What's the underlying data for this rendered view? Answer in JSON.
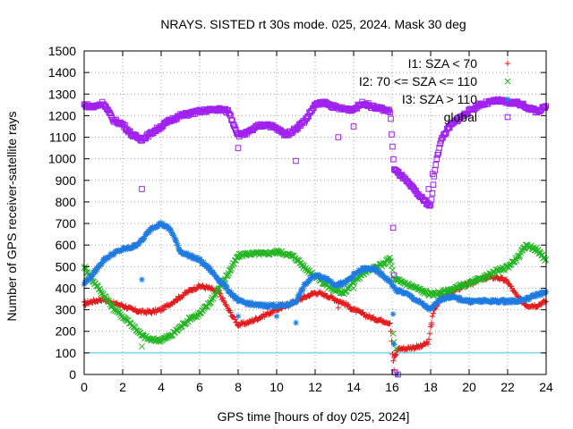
{
  "chart_data": {
    "type": "scatter",
    "title": "NRAYS. SISTED rt 30s mode. 025, 2024. Mask 30 deg",
    "xlabel": "GPS time [hours of doy 025, 2024]",
    "ylabel": "Number of GPS receiver-satellite rays",
    "xlim": [
      0,
      24
    ],
    "ylim": [
      0,
      1500
    ],
    "xticks": [
      0,
      2,
      4,
      6,
      8,
      10,
      12,
      14,
      16,
      18,
      20,
      22,
      24
    ],
    "yticks": [
      0,
      100,
      200,
      300,
      400,
      500,
      600,
      700,
      800,
      900,
      1000,
      1100,
      1200,
      1300,
      1400,
      1500
    ],
    "grid": true,
    "legend_position": "top-right",
    "reference_line": {
      "y": 100,
      "color": "#40c8e8"
    },
    "series": [
      {
        "name": "I1: SZA < 70",
        "marker": "+",
        "color": "#e41a1c",
        "points": [
          [
            0,
            330
          ],
          [
            0.5,
            340
          ],
          [
            1,
            350
          ],
          [
            1.5,
            330
          ],
          [
            2,
            320
          ],
          [
            2.5,
            300
          ],
          [
            3,
            290
          ],
          [
            3.5,
            290
          ],
          [
            4,
            300
          ],
          [
            4.5,
            330
          ],
          [
            5,
            360
          ],
          [
            5.5,
            390
          ],
          [
            6,
            410
          ],
          [
            6.5,
            400
          ],
          [
            7,
            380
          ],
          [
            7.5,
            300
          ],
          [
            8,
            230
          ],
          [
            8.5,
            240
          ],
          [
            9,
            260
          ],
          [
            9.5,
            280
          ],
          [
            10,
            300
          ],
          [
            10.5,
            320
          ],
          [
            11,
            340
          ],
          [
            11.5,
            360
          ],
          [
            12,
            380
          ],
          [
            12.5,
            370
          ],
          [
            13,
            350
          ],
          [
            13.5,
            330
          ],
          [
            14,
            300
          ],
          [
            14.5,
            280
          ],
          [
            15,
            260
          ],
          [
            15.5,
            250
          ],
          [
            15.9,
            240
          ],
          [
            16.05,
            60
          ],
          [
            16.3,
            120
          ],
          [
            16.7,
            120
          ],
          [
            17,
            125
          ],
          [
            17.5,
            130
          ],
          [
            17.9,
            150
          ],
          [
            18.1,
            280
          ],
          [
            18.5,
            350
          ],
          [
            19,
            380
          ],
          [
            19.5,
            400
          ],
          [
            20,
            420
          ],
          [
            20.5,
            440
          ],
          [
            21,
            450
          ],
          [
            21.5,
            450
          ],
          [
            22,
            430
          ],
          [
            22.5,
            360
          ],
          [
            23,
            320
          ],
          [
            23.5,
            320
          ],
          [
            24,
            340
          ]
        ],
        "outliers": [
          [
            0.05,
            320
          ],
          [
            13.2,
            310
          ],
          [
            16.1,
            20
          ],
          [
            16.15,
            90
          ],
          [
            18.05,
            230
          ]
        ]
      },
      {
        "name": "I2: 70 <= SZA <= 110",
        "marker": "x",
        "color": "#22b522",
        "points": [
          [
            0,
            500
          ],
          [
            0.5,
            430
          ],
          [
            1,
            370
          ],
          [
            1.5,
            310
          ],
          [
            2,
            270
          ],
          [
            2.5,
            230
          ],
          [
            3,
            180
          ],
          [
            3.5,
            160
          ],
          [
            4,
            160
          ],
          [
            4.5,
            180
          ],
          [
            5,
            220
          ],
          [
            5.5,
            260
          ],
          [
            6,
            280
          ],
          [
            6.5,
            330
          ],
          [
            7,
            400
          ],
          [
            7.5,
            470
          ],
          [
            8,
            550
          ],
          [
            8.5,
            560
          ],
          [
            9,
            560
          ],
          [
            9.5,
            560
          ],
          [
            10,
            570
          ],
          [
            10.5,
            560
          ],
          [
            11,
            540
          ],
          [
            11.5,
            490
          ],
          [
            12,
            460
          ],
          [
            12.5,
            420
          ],
          [
            13,
            390
          ],
          [
            13.5,
            380
          ],
          [
            14,
            430
          ],
          [
            14.5,
            470
          ],
          [
            15,
            490
          ],
          [
            15.5,
            510
          ],
          [
            15.9,
            540
          ],
          [
            16.1,
            440
          ],
          [
            16.5,
            430
          ],
          [
            17,
            410
          ],
          [
            17.5,
            390
          ],
          [
            18,
            370
          ],
          [
            18.5,
            380
          ],
          [
            19,
            390
          ],
          [
            19.5,
            410
          ],
          [
            20,
            420
          ],
          [
            20.5,
            440
          ],
          [
            21,
            460
          ],
          [
            21.5,
            480
          ],
          [
            22,
            500
          ],
          [
            22.5,
            540
          ],
          [
            23,
            600
          ],
          [
            23.5,
            580
          ],
          [
            24,
            530
          ]
        ],
        "outliers": [
          [
            3,
            130
          ],
          [
            14,
            400
          ],
          [
            16.05,
            190
          ],
          [
            16.1,
            150
          ],
          [
            16.2,
            120
          ]
        ]
      },
      {
        "name": "I3: SZA > 110",
        "marker": "*",
        "color": "#1f7be0",
        "points": [
          [
            0,
            420
          ],
          [
            0.5,
            470
          ],
          [
            1,
            530
          ],
          [
            1.5,
            560
          ],
          [
            2,
            580
          ],
          [
            2.5,
            590
          ],
          [
            3,
            620
          ],
          [
            3.5,
            680
          ],
          [
            4,
            700
          ],
          [
            4.5,
            670
          ],
          [
            5,
            570
          ],
          [
            5.5,
            550
          ],
          [
            6,
            530
          ],
          [
            6.5,
            490
          ],
          [
            7,
            440
          ],
          [
            7.5,
            390
          ],
          [
            8,
            340
          ],
          [
            8.5,
            330
          ],
          [
            9,
            320
          ],
          [
            9.5,
            320
          ],
          [
            10,
            320
          ],
          [
            10.5,
            320
          ],
          [
            11,
            340
          ],
          [
            11.5,
            420
          ],
          [
            12,
            460
          ],
          [
            12.5,
            450
          ],
          [
            13,
            420
          ],
          [
            13.5,
            420
          ],
          [
            14,
            460
          ],
          [
            14.5,
            490
          ],
          [
            15,
            490
          ],
          [
            15.5,
            460
          ],
          [
            15.9,
            430
          ],
          [
            16.2,
            390
          ],
          [
            16.6,
            380
          ],
          [
            17,
            360
          ],
          [
            17.5,
            330
          ],
          [
            18,
            300
          ],
          [
            18.5,
            350
          ],
          [
            19,
            360
          ],
          [
            19.5,
            350
          ],
          [
            20,
            340
          ],
          [
            20.5,
            340
          ],
          [
            21,
            340
          ],
          [
            21.5,
            340
          ],
          [
            22,
            340
          ],
          [
            22.5,
            340
          ],
          [
            23,
            350
          ],
          [
            23.5,
            370
          ],
          [
            24,
            380
          ]
        ],
        "outliers": [
          [
            3,
            440
          ],
          [
            8,
            270
          ],
          [
            10,
            270
          ],
          [
            11,
            240
          ],
          [
            16.05,
            280
          ],
          [
            16.1,
            140
          ],
          [
            16.25,
            0
          ]
        ]
      },
      {
        "name": "global",
        "marker": "square",
        "color": "#a020f0",
        "points": [
          [
            0,
            1250
          ],
          [
            0.5,
            1240
          ],
          [
            1,
            1260
          ],
          [
            1.5,
            1180
          ],
          [
            2,
            1160
          ],
          [
            2.5,
            1110
          ],
          [
            3,
            1090
          ],
          [
            3.5,
            1120
          ],
          [
            4,
            1150
          ],
          [
            4.5,
            1180
          ],
          [
            5,
            1200
          ],
          [
            5.5,
            1210
          ],
          [
            6,
            1220
          ],
          [
            6.5,
            1225
          ],
          [
            7,
            1230
          ],
          [
            7.5,
            1220
          ],
          [
            8,
            1110
          ],
          [
            8.5,
            1120
          ],
          [
            9,
            1150
          ],
          [
            9.5,
            1160
          ],
          [
            10,
            1140
          ],
          [
            10.5,
            1110
          ],
          [
            11,
            1140
          ],
          [
            11.5,
            1180
          ],
          [
            12,
            1250
          ],
          [
            12.5,
            1260
          ],
          [
            13,
            1240
          ],
          [
            13.5,
            1230
          ],
          [
            14,
            1230
          ],
          [
            14.5,
            1260
          ],
          [
            15,
            1240
          ],
          [
            15.5,
            1230
          ],
          [
            15.9,
            1220
          ],
          [
            16.1,
            950
          ],
          [
            16.5,
            920
          ],
          [
            17,
            870
          ],
          [
            17.5,
            820
          ],
          [
            18,
            780
          ],
          [
            18.3,
            1000
          ],
          [
            18.6,
            1100
          ],
          [
            19,
            1150
          ],
          [
            19.5,
            1190
          ],
          [
            20,
            1220
          ],
          [
            20.5,
            1250
          ],
          [
            21,
            1260
          ],
          [
            21.5,
            1270
          ],
          [
            22,
            1260
          ],
          [
            22.5,
            1260
          ],
          [
            23,
            1240
          ],
          [
            23.5,
            1220
          ],
          [
            24,
            1240
          ]
        ],
        "outliers": [
          [
            3,
            860
          ],
          [
            8,
            1050
          ],
          [
            11,
            990
          ],
          [
            13.2,
            1100
          ],
          [
            14,
            1150
          ],
          [
            16.05,
            680
          ],
          [
            16.1,
            460
          ],
          [
            16.15,
            10
          ],
          [
            16.3,
            0
          ],
          [
            17.9,
            860
          ],
          [
            18.1,
            930
          ]
        ]
      }
    ]
  }
}
